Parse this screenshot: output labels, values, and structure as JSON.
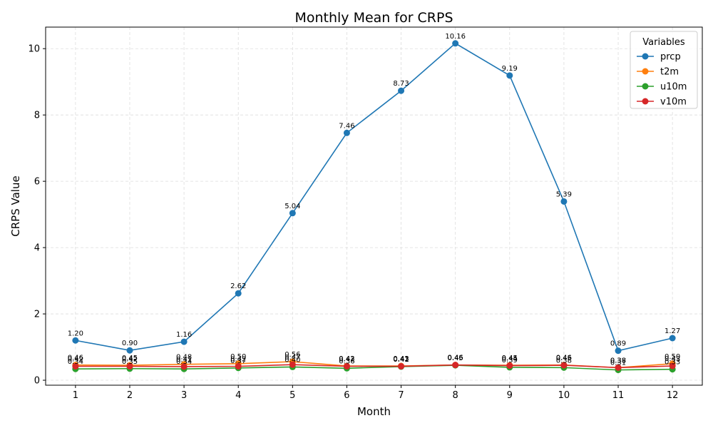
{
  "chart_data": {
    "type": "line",
    "title": "Monthly Mean for CRPS",
    "xlabel": "Month",
    "ylabel": "CRPS Value",
    "x": [
      1,
      2,
      3,
      4,
      5,
      6,
      7,
      8,
      9,
      10,
      11,
      12
    ],
    "xticks": [
      "1",
      "2",
      "3",
      "4",
      "5",
      "6",
      "7",
      "8",
      "9",
      "10",
      "11",
      "12"
    ],
    "yticks": [
      "0",
      "2",
      "4",
      "6",
      "8",
      "10"
    ],
    "ylim": [
      -0.15,
      10.65
    ],
    "xlim": [
      0.45,
      12.55
    ],
    "grid": true,
    "legend": {
      "title": "Variables",
      "placement": "top-right"
    },
    "series": [
      {
        "name": "prcp",
        "color": "#1f77b4",
        "values": [
          1.2,
          0.9,
          1.16,
          2.62,
          5.04,
          7.46,
          8.73,
          10.16,
          9.19,
          5.39,
          0.89,
          1.27
        ],
        "labels": [
          "1.20",
          "0.90",
          "1.16",
          "2.62",
          "5.04",
          "7.46",
          "8.73",
          "10.16",
          "9.19",
          "5.39",
          "0.89",
          "1.27"
        ]
      },
      {
        "name": "t2m",
        "color": "#ff7f0e",
        "values": [
          0.46,
          0.45,
          0.48,
          0.5,
          0.56,
          0.43,
          0.43,
          0.46,
          0.45,
          0.46,
          0.38,
          0.5
        ],
        "labels": [
          "0.46",
          "0.45",
          "0.48",
          "0.50",
          "0.56",
          "0.43",
          "0.43",
          "0.46",
          "0.45",
          "0.46",
          "0.38",
          "0.50"
        ]
      },
      {
        "name": "u10m",
        "color": "#2ca02c",
        "values": [
          0.34,
          0.35,
          0.34,
          0.37,
          0.4,
          0.36,
          0.41,
          0.45,
          0.39,
          0.38,
          0.31,
          0.33
        ],
        "labels": [
          "0.34",
          "0.35",
          "0.34",
          "0.37",
          "0.40",
          "0.36",
          "0.41",
          "0.45",
          "0.39",
          "0.38",
          "0.31",
          "0.33"
        ]
      },
      {
        "name": "v10m",
        "color": "#d62728",
        "values": [
          0.42,
          0.42,
          0.41,
          0.42,
          0.47,
          0.42,
          0.42,
          0.46,
          0.44,
          0.45,
          0.38,
          0.43
        ],
        "labels": [
          "0.42",
          "0.42",
          "0.41",
          "0.42",
          "0.47",
          "0.42",
          "0.42",
          "0.46",
          "0.44",
          "0.45",
          "0.38",
          "0.43"
        ]
      }
    ]
  }
}
